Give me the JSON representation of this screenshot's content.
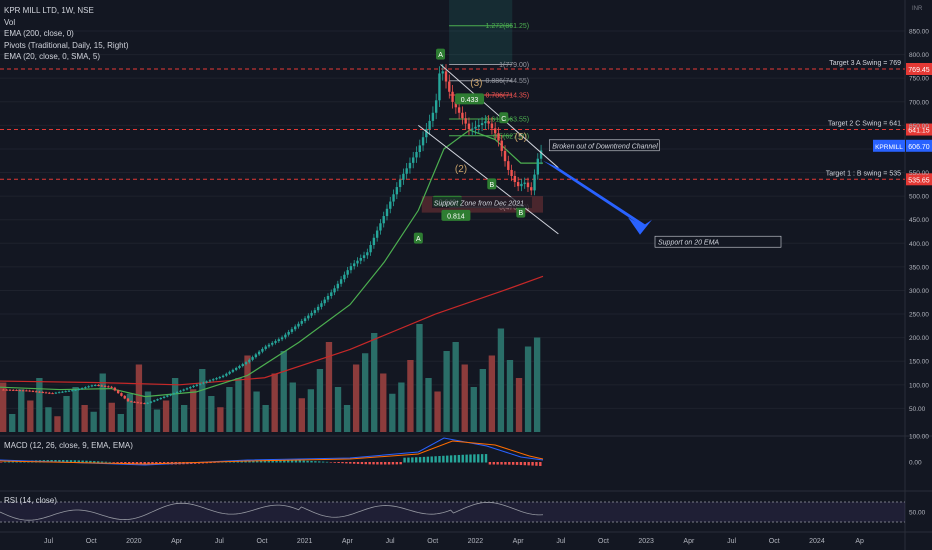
{
  "legend": {
    "symbol": "KPR MILL LTD, 1W, NSE",
    "vol": "Vol",
    "ema200": "EMA (200, close, 0)",
    "pivots": "Pivots (Traditional, Daily, 15, Right)",
    "ema20": "EMA (20, close, 0, SMA, 5)"
  },
  "macd_title": "MACD (12, 26, close, 9, EMA, EMA)",
  "rsi_title": "RSI (14, close)",
  "colors": {
    "background": "#131722",
    "up": "#26a69a",
    "down": "#ef5350",
    "vol_up": "#2a6e68",
    "vol_down": "#8c3c3c",
    "ema20": "#4caf50",
    "ema200": "#c62828",
    "macd_line": "#2962ff",
    "signal_line": "#ff6d00",
    "rsi_line": "#9598a1",
    "fib_green": "#4caf50",
    "fib_red": "#ef5350",
    "target_dash": "#e53935",
    "arrow": "#2962ff"
  },
  "chart_data": {
    "type": "candlestick",
    "symbol": "KPRMILL",
    "timeframe": "1W",
    "ylabel": "INR",
    "ylim": [
      0,
      900
    ],
    "y_ticks": [
      50,
      100,
      150,
      200,
      250,
      300,
      350,
      400,
      450,
      500,
      550,
      600,
      650,
      700,
      750,
      800,
      850
    ],
    "x_tick_labels": [
      "Jul",
      "Oct",
      "2020",
      "Apr",
      "Jul",
      "Oct",
      "2021",
      "Apr",
      "Jul",
      "Oct",
      "2022",
      "Apr",
      "Jul",
      "Oct",
      "2023",
      "Apr",
      "Jul",
      "Oct",
      "2024",
      "Ap"
    ],
    "x_start": "2019.45",
    "x_end": "2024.75",
    "last_price": {
      "value": "606.70",
      "label": "KPRMILL"
    },
    "price_path": [
      [
        2019.45,
        90
      ],
      [
        2019.6,
        88
      ],
      [
        2019.75,
        82
      ],
      [
        2019.9,
        90
      ],
      [
        2020.0,
        100
      ],
      [
        2020.1,
        95
      ],
      [
        2020.2,
        65
      ],
      [
        2020.3,
        60
      ],
      [
        2020.45,
        80
      ],
      [
        2020.6,
        100
      ],
      [
        2020.75,
        118
      ],
      [
        2020.9,
        150
      ],
      [
        2021.0,
        180
      ],
      [
        2021.1,
        200
      ],
      [
        2021.2,
        230
      ],
      [
        2021.3,
        260
      ],
      [
        2021.4,
        300
      ],
      [
        2021.5,
        350
      ],
      [
        2021.6,
        380
      ],
      [
        2021.7,
        460
      ],
      [
        2021.8,
        540
      ],
      [
        2021.9,
        600
      ],
      [
        2022.0,
        690
      ],
      [
        2022.03,
        779
      ],
      [
        2022.1,
        700
      ],
      [
        2022.2,
        640
      ],
      [
        2022.3,
        660
      ],
      [
        2022.36,
        628
      ],
      [
        2022.42,
        560
      ],
      [
        2022.48,
        520
      ],
      [
        2022.52,
        530
      ],
      [
        2022.56,
        510
      ],
      [
        2022.6,
        580
      ],
      [
        2022.63,
        606.7
      ]
    ],
    "ema20_path": [
      [
        2019.45,
        95
      ],
      [
        2019.8,
        90
      ],
      [
        2020.1,
        92
      ],
      [
        2020.3,
        75
      ],
      [
        2020.6,
        85
      ],
      [
        2020.9,
        120
      ],
      [
        2021.2,
        190
      ],
      [
        2021.5,
        270
      ],
      [
        2021.7,
        360
      ],
      [
        2021.9,
        470
      ],
      [
        2022.05,
        600
      ],
      [
        2022.2,
        640
      ],
      [
        2022.35,
        620
      ],
      [
        2022.5,
        570
      ],
      [
        2022.63,
        570
      ]
    ],
    "ema200_path": [
      [
        2019.45,
        108
      ],
      [
        2020.0,
        105
      ],
      [
        2020.5,
        100
      ],
      [
        2021.0,
        115
      ],
      [
        2021.5,
        175
      ],
      [
        2022.0,
        250
      ],
      [
        2022.4,
        300
      ],
      [
        2022.63,
        330
      ]
    ],
    "volume": [
      110,
      40,
      95,
      70,
      120,
      55,
      35,
      80,
      100,
      60,
      45,
      130,
      65,
      40,
      85,
      150,
      90,
      50,
      70,
      120,
      60,
      95,
      140,
      80,
      55,
      100,
      120,
      170,
      90,
      60,
      130,
      180,
      110,
      75,
      95,
      140,
      200,
      100,
      60,
      150,
      175,
      220,
      130,
      85,
      110,
      160,
      240,
      120,
      90,
      180,
      200,
      150,
      100,
      140,
      170,
      230,
      160,
      120,
      190,
      210
    ],
    "vol_axis": [
      50,
      100,
      150,
      200
    ],
    "macd_axis": [
      100,
      0
    ],
    "rsi_axis": [
      50
    ],
    "targets": [
      {
        "label": "Target 3 A Swing = 769",
        "price": 769.45,
        "tag": "769.45"
      },
      {
        "label": "Target 2 C Swing = 641",
        "price": 641.15,
        "tag": "641.15"
      },
      {
        "label": "Target 1 : B swing = 535",
        "price": 535.65,
        "tag": "535.65"
      }
    ],
    "fib_levels": [
      {
        "label": "1.272(861.25)",
        "price": 861.25,
        "color": "green"
      },
      {
        "label": "1(779.00)",
        "price": 779.0,
        "color": "grey"
      },
      {
        "label": "0.886(744.55)",
        "price": 744.55,
        "color": "grey"
      },
      {
        "label": "0.786(714.35)",
        "price": 714.35,
        "color": "red"
      },
      {
        "label": "0.618(663.55)",
        "price": 663.55,
        "color": "green"
      },
      {
        "label": "0.5(627.90)",
        "price": 627.9,
        "color": "green"
      },
      {
        "label": "0(476.80)",
        "price": 476.8,
        "color": "grey"
      }
    ],
    "wave_labels": [
      {
        "text": "A",
        "t": 2022.03,
        "price": 800
      },
      {
        "text": "(3)",
        "t": 2022.24,
        "price": 740
      },
      {
        "text": "0.433",
        "t": 2022.2,
        "price": 705
      },
      {
        "text": "C",
        "t": 2022.4,
        "price": 665
      },
      {
        "text": "(5)",
        "t": 2022.5,
        "price": 625
      },
      {
        "text": "(2)",
        "t": 2022.15,
        "price": 557
      },
      {
        "text": "B",
        "t": 2022.33,
        "price": 525
      },
      {
        "text": "A",
        "t": 2021.9,
        "price": 410
      },
      {
        "text": "0.649",
        "t": 2022.07,
        "price": 488
      },
      {
        "text": "0.814",
        "t": 2022.12,
        "price": 458
      },
      {
        "text": "B",
        "t": 2022.5,
        "price": 465
      }
    ],
    "annotations": [
      {
        "text": "Broken out of Downtrend Channel"
      },
      {
        "text": "Support Zone from Dec 2021"
      },
      {
        "text": "Support on 20 EMA"
      }
    ],
    "axis_unit": "INR"
  }
}
